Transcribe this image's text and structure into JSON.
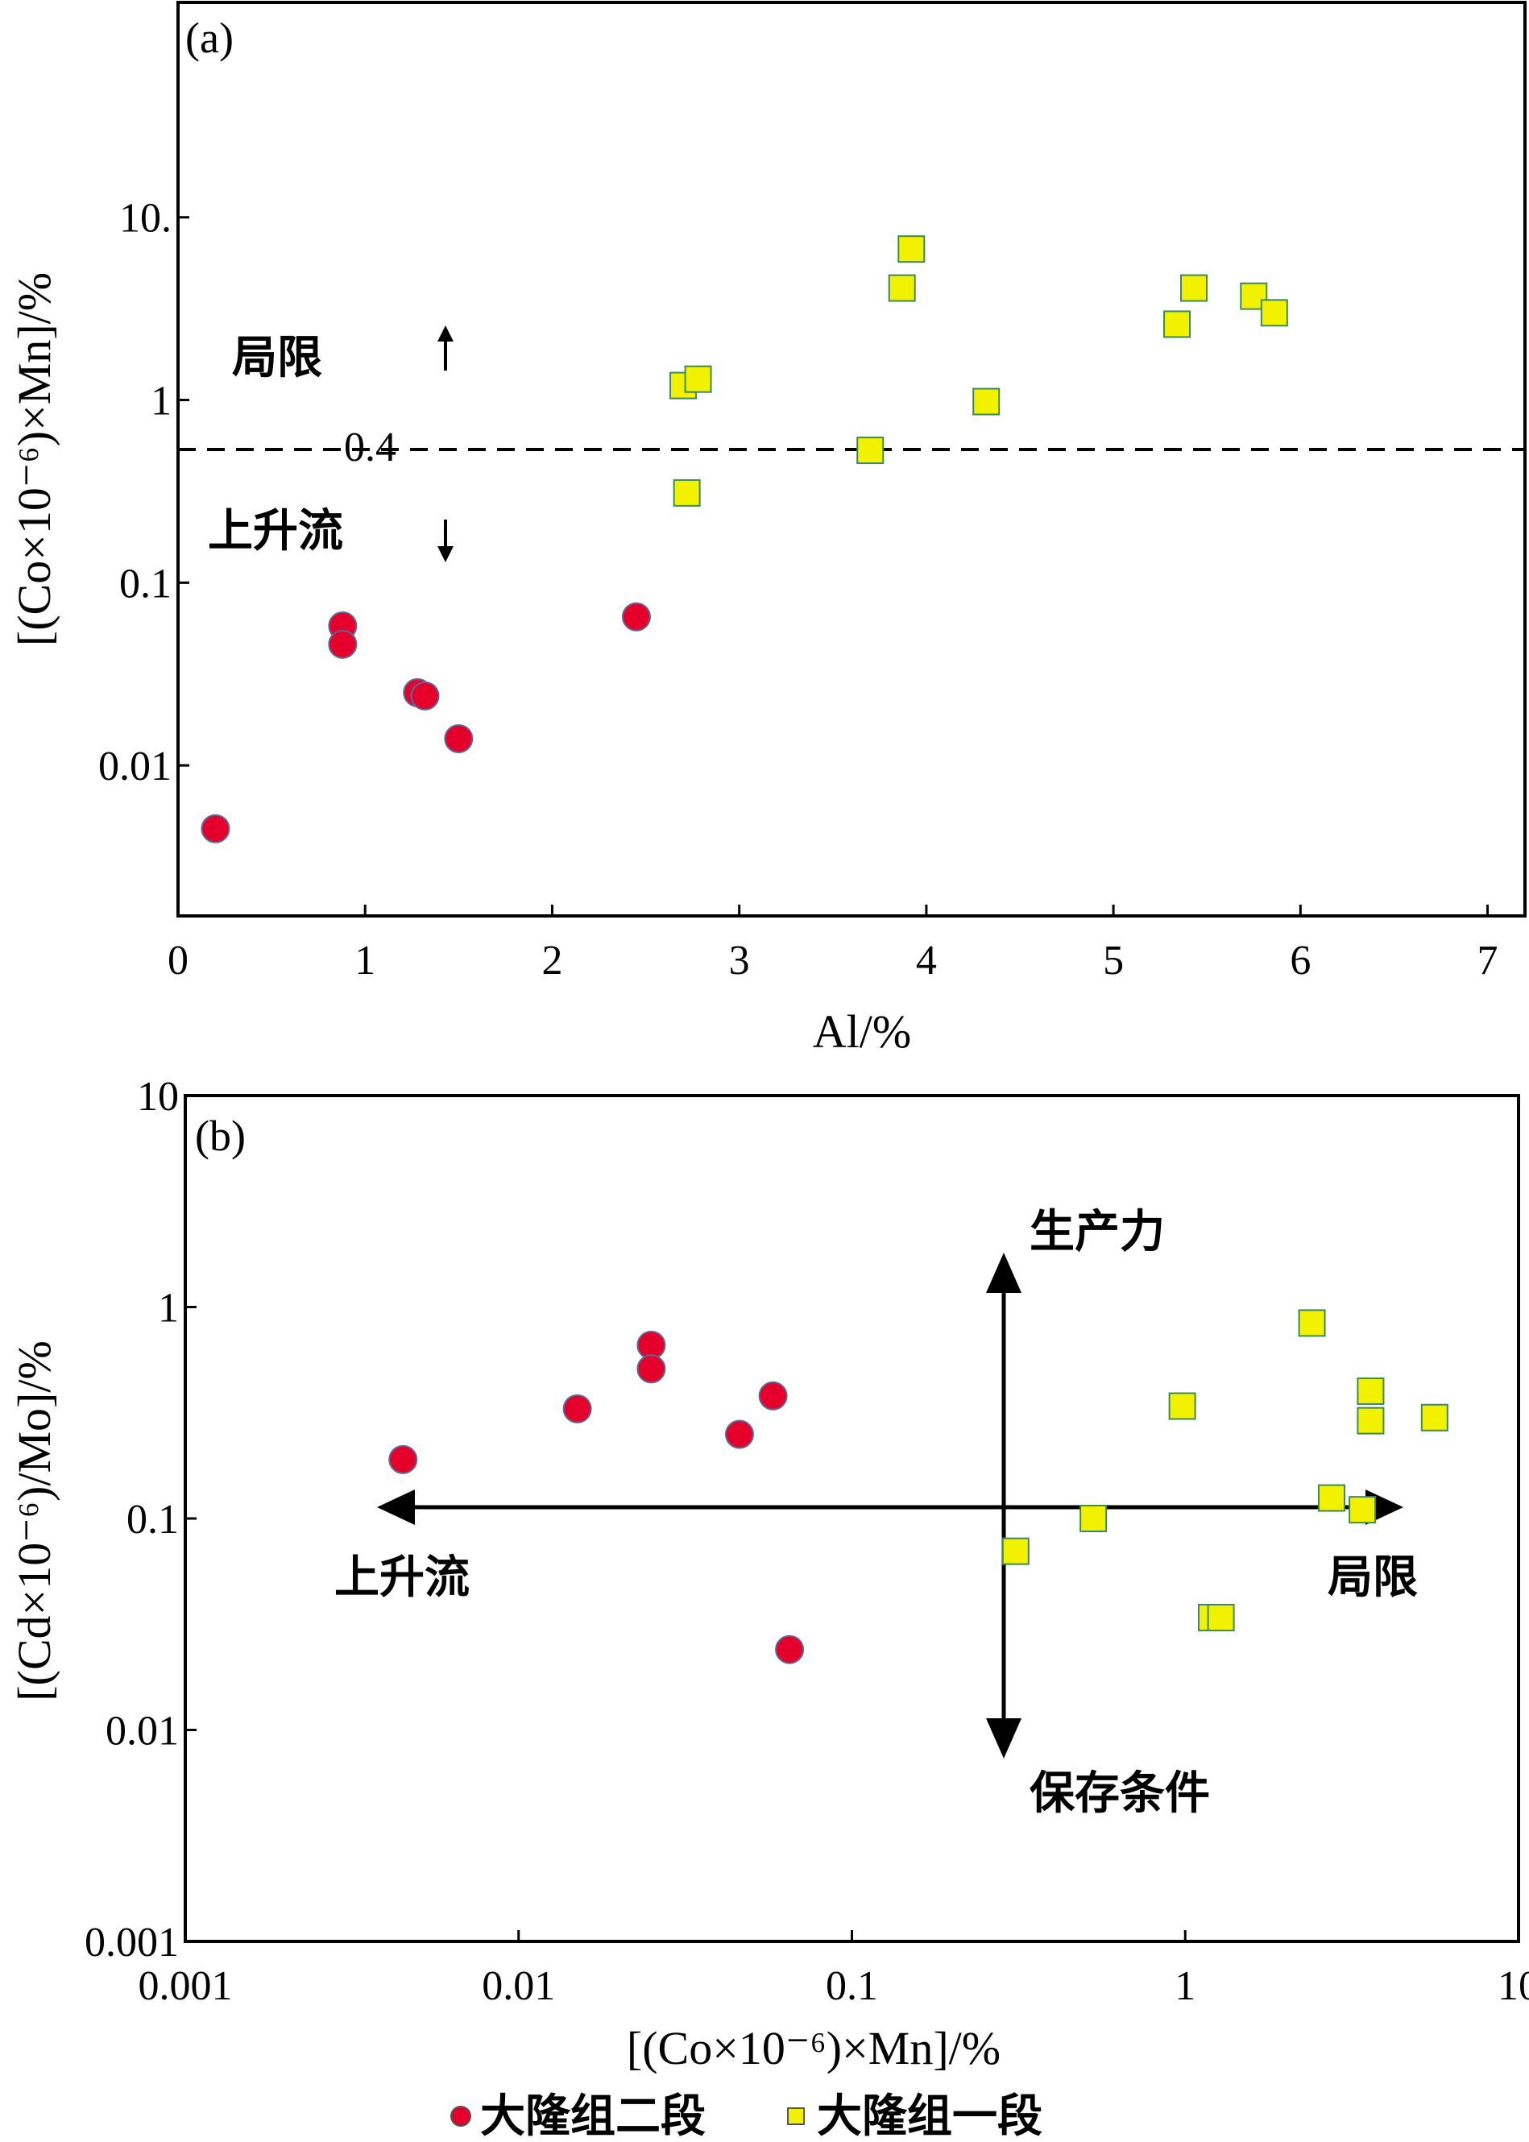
{
  "chart_data": [
    {
      "panel": "(a)",
      "type": "scatter",
      "xlabel": "Al/%",
      "ylabel": "[(Co×10⁻⁶)×Mn]/%",
      "xscale": "linear",
      "yscale": "log",
      "xlim": [
        0,
        7.2
      ],
      "ylim": [
        0.0015,
        150
      ],
      "xticks": [
        "0",
        "1",
        "2",
        "3",
        "4",
        "5",
        "6",
        "7"
      ],
      "yticks": [
        "0.01",
        "0.1",
        "1",
        "10."
      ],
      "threshold": {
        "value": 0.4,
        "label": "0.4"
      },
      "annotations": {
        "upper": "局限",
        "lower": "上升流"
      },
      "series": [
        {
          "name": "大隆组二段",
          "marker": "circle",
          "color": "#e5002b",
          "x": [
            0.2,
            0.88,
            0.88,
            1.28,
            1.32,
            1.5,
            2.45
          ],
          "y": [
            0.0045,
            0.058,
            0.046,
            0.025,
            0.024,
            0.014,
            0.065
          ]
        },
        {
          "name": "大隆组一段",
          "marker": "square",
          "color": "#f2f200",
          "x": [
            2.7,
            2.78,
            2.72,
            3.7,
            3.87,
            3.92,
            4.32,
            5.34,
            5.43,
            5.75,
            5.86
          ],
          "y": [
            1.2,
            1.3,
            0.31,
            0.53,
            4.1,
            6.7,
            0.98,
            2.6,
            4.1,
            3.7,
            3.0
          ]
        }
      ]
    },
    {
      "panel": "(b)",
      "type": "scatter",
      "xlabel": "[(Co×10⁻⁶)×Mn]/%",
      "ylabel": "[(Cd×10⁻⁶)/Mo]/%",
      "xscale": "log",
      "yscale": "log",
      "xlim": [
        0.001,
        10
      ],
      "ylim": [
        0.001,
        10
      ],
      "xticks": [
        "0.001",
        "0.01",
        "0.1",
        "1",
        "10"
      ],
      "yticks": [
        "0.001",
        "0.01",
        "0.1",
        "1",
        "10"
      ],
      "annotations": {
        "left": "上升流",
        "right": "局限",
        "up": "生产力",
        "down": "保存条件"
      },
      "series": [
        {
          "name": "大隆组二段",
          "marker": "circle",
          "color": "#e5002b",
          "x": [
            0.0045,
            0.015,
            0.025,
            0.025,
            0.046,
            0.058,
            0.065
          ],
          "y": [
            0.19,
            0.33,
            0.66,
            0.51,
            0.25,
            0.38,
            0.024
          ]
        },
        {
          "name": "大隆组一段",
          "marker": "square",
          "color": "#f2f200",
          "x": [
            0.31,
            0.53,
            0.98,
            1.2,
            1.28,
            2.4,
            2.75,
            3.4,
            3.6,
            3.6,
            5.6
          ],
          "y": [
            0.07,
            0.1,
            0.34,
            0.034,
            0.034,
            0.84,
            0.125,
            0.11,
            0.4,
            0.29,
            0.3
          ]
        }
      ]
    }
  ],
  "legend": [
    {
      "label": "大隆组二段",
      "marker": "circle",
      "color": "#e5002b"
    },
    {
      "label": "大隆组一段",
      "marker": "square",
      "color": "#f2f200"
    }
  ]
}
